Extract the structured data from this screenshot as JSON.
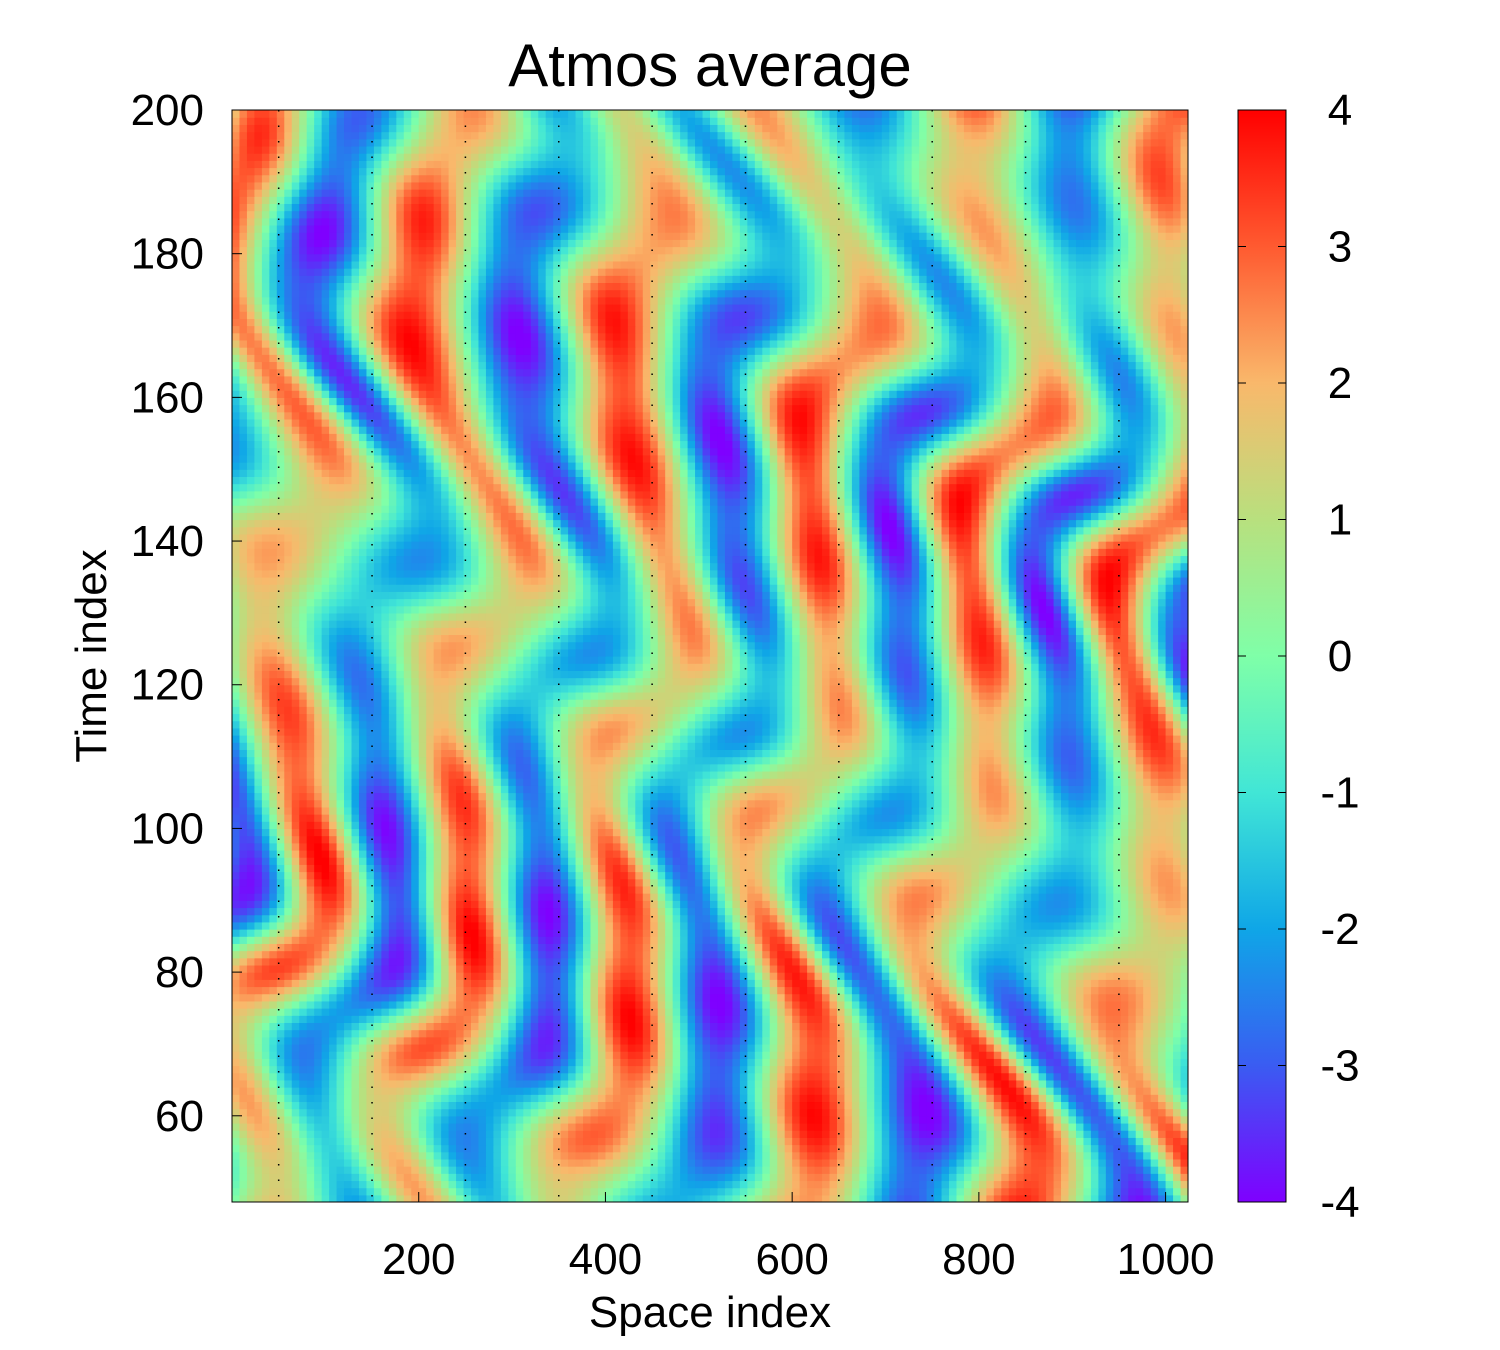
{
  "chart_data": {
    "type": "heatmap",
    "title": "Atmos average",
    "xlabel": "Space index",
    "ylabel": "Time index",
    "xlim": [
      0,
      1024
    ],
    "ylim": [
      48,
      200
    ],
    "x_ticks": [
      200,
      400,
      600,
      800,
      1000
    ],
    "y_ticks": [
      60,
      80,
      100,
      120,
      140,
      160,
      180,
      200
    ],
    "colorbar": {
      "range": [
        -4,
        4
      ],
      "ticks": [
        -4,
        -3,
        -2,
        -1,
        0,
        1,
        2,
        3,
        4
      ],
      "colormap": "rainbow",
      "stops": [
        "#7f00ff",
        "#3a5cf2",
        "#0fa6e7",
        "#41e6d6",
        "#7fffa8",
        "#b8e07e",
        "#f9b86b",
        "#ff5a30",
        "#ff0000"
      ]
    },
    "grid": "vertical dotted lines at every 100 space index",
    "value_range": [
      -4,
      4
    ],
    "pattern_note": "oscillating diagonal bands of alternating positive (red) and negative (blue) values drifting across space over time"
  }
}
